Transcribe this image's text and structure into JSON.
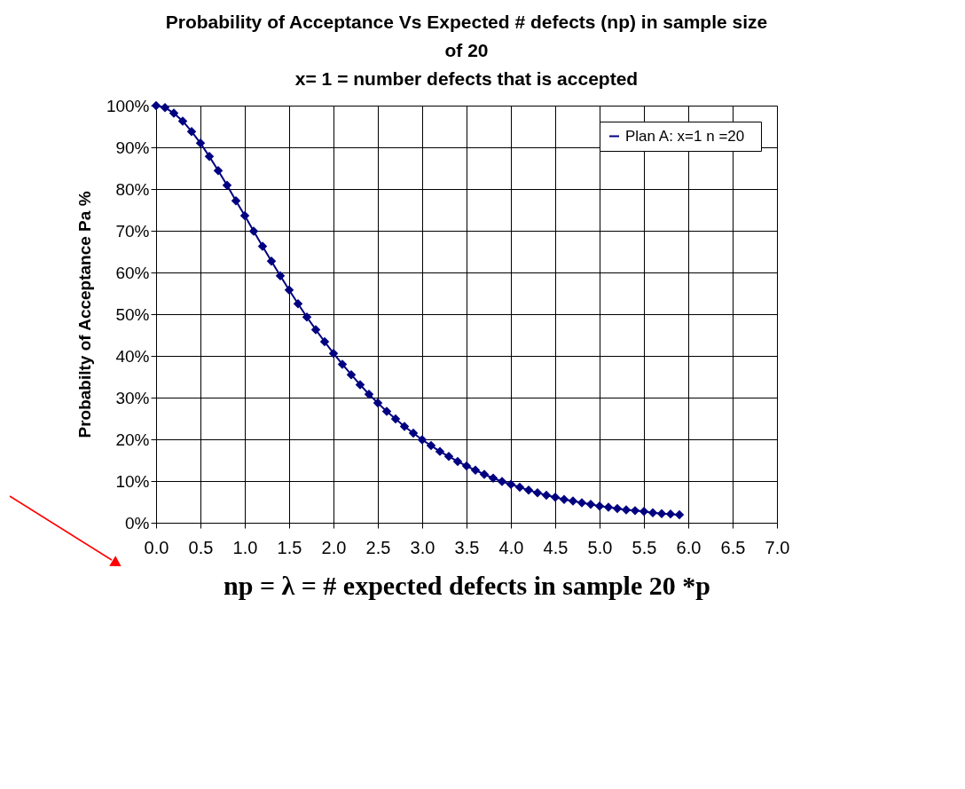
{
  "chart_data": {
    "type": "line",
    "title": "Probability of Acceptance Vs Expected # defects (np) in  sample size of 20",
    "subtitle": "x= 1 = number defects that is accepted",
    "xlabel": "np = λ = # expected defects in sample 20 *p",
    "ylabel": "Probabilty of Acceptance Pa %",
    "x": [
      0.0,
      0.1,
      0.2,
      0.3,
      0.4,
      0.5,
      0.6,
      0.7,
      0.8,
      0.9,
      1.0,
      1.1,
      1.2,
      1.3,
      1.4,
      1.5,
      1.6,
      1.7,
      1.8,
      1.9,
      2.0,
      2.1,
      2.2,
      2.3,
      2.4,
      2.5,
      2.6,
      2.7,
      2.8,
      2.9,
      3.0,
      3.1,
      3.2,
      3.3,
      3.4,
      3.5,
      3.6,
      3.7,
      3.8,
      3.9,
      4.0,
      4.1,
      4.2,
      4.3,
      4.4,
      4.5,
      4.6,
      4.7,
      4.8,
      4.9,
      5.0,
      5.1,
      5.2,
      5.3,
      5.4,
      5.5,
      5.6,
      5.7,
      5.8,
      5.9
    ],
    "series": [
      {
        "name": "Plan A:   x=1 n =20",
        "color": "#000080",
        "values": [
          100,
          99.5,
          98.2,
          96.3,
          93.8,
          91.0,
          87.8,
          84.4,
          80.9,
          77.2,
          73.6,
          69.9,
          66.3,
          62.7,
          59.2,
          55.8,
          52.5,
          49.3,
          46.3,
          43.4,
          40.6,
          38.0,
          35.5,
          33.1,
          30.8,
          28.7,
          26.7,
          24.9,
          23.1,
          21.5,
          19.9,
          18.5,
          17.1,
          15.9,
          14.7,
          13.6,
          12.6,
          11.6,
          10.7,
          9.9,
          9.2,
          8.5,
          7.8,
          7.2,
          6.6,
          6.1,
          5.6,
          5.2,
          4.8,
          4.4,
          4.0,
          3.7,
          3.4,
          3.1,
          2.9,
          2.7,
          2.4,
          2.2,
          2.1,
          1.9
        ]
      }
    ],
    "xlim": [
      0,
      7
    ],
    "xticks": [
      {
        "value": 0,
        "label": "0.0"
      },
      0.5,
      {
        "value": 1,
        "label": "1.0"
      },
      1.5,
      {
        "value": 2,
        "label": "2.0"
      },
      2.5,
      {
        "value": 3,
        "label": "3.0"
      },
      3.5,
      {
        "value": 4,
        "label": "4.0"
      },
      4.5,
      {
        "value": 5,
        "label": "5.0"
      },
      5.5,
      {
        "value": 6,
        "label": "6.0"
      },
      6.5,
      {
        "value": 7,
        "label": "7.0"
      }
    ],
    "ylim": [
      0,
      100
    ],
    "yticks": [
      {
        "value": 0,
        "label": "0%"
      },
      {
        "value": 10,
        "label": "10%"
      },
      {
        "value": 20,
        "label": "20%"
      },
      {
        "value": 30,
        "label": "30%"
      },
      {
        "value": 40,
        "label": "40%"
      },
      {
        "value": 50,
        "label": "50%"
      },
      {
        "value": 60,
        "label": "60%"
      },
      {
        "value": 70,
        "label": "70%"
      },
      {
        "value": 80,
        "label": "80%"
      },
      {
        "value": 90,
        "label": "90%"
      },
      {
        "value": 100,
        "label": "100%"
      }
    ],
    "grid": true,
    "legend": "top right",
    "marker": "diamond",
    "line_style": "solid"
  }
}
